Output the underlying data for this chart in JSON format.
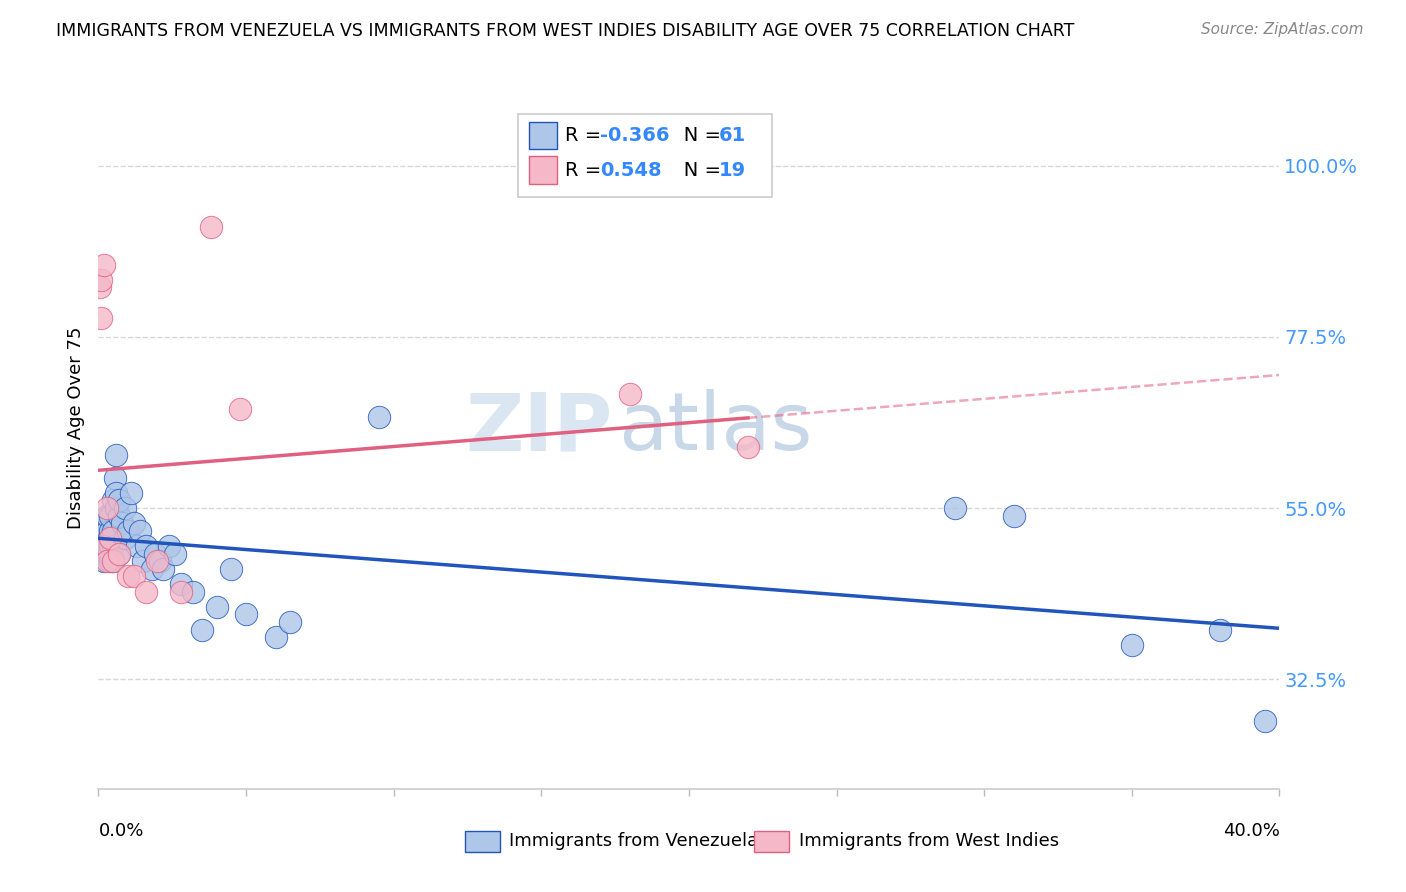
{
  "title": "IMMIGRANTS FROM VENEZUELA VS IMMIGRANTS FROM WEST INDIES DISABILITY AGE OVER 75 CORRELATION CHART",
  "source": "Source: ZipAtlas.com",
  "ylabel": "Disability Age Over 75",
  "right_yticks": [
    0.325,
    0.55,
    0.775,
    1.0
  ],
  "right_yticklabels": [
    "32.5%",
    "55.0%",
    "77.5%",
    "100.0%"
  ],
  "venezuela_color": "#aec6e8",
  "west_indies_color": "#f5b8c8",
  "trend_venezuela_color": "#2255bb",
  "trend_west_indies_color": "#e06080",
  "xmin": 0.0,
  "xmax": 0.4,
  "ymin": 0.18,
  "ymax": 1.13,
  "venezuela_x": [
    0.0008,
    0.001,
    0.001,
    0.0015,
    0.0015,
    0.002,
    0.002,
    0.002,
    0.0025,
    0.003,
    0.003,
    0.003,
    0.003,
    0.0035,
    0.0035,
    0.004,
    0.004,
    0.004,
    0.004,
    0.0045,
    0.005,
    0.005,
    0.005,
    0.005,
    0.0055,
    0.006,
    0.006,
    0.006,
    0.007,
    0.007,
    0.007,
    0.008,
    0.009,
    0.009,
    0.01,
    0.011,
    0.012,
    0.013,
    0.014,
    0.015,
    0.016,
    0.018,
    0.019,
    0.021,
    0.022,
    0.024,
    0.026,
    0.028,
    0.032,
    0.035,
    0.04,
    0.045,
    0.05,
    0.06,
    0.065,
    0.095,
    0.29,
    0.31,
    0.35,
    0.38,
    0.395
  ],
  "venezuela_y": [
    0.5,
    0.49,
    0.51,
    0.5,
    0.52,
    0.48,
    0.5,
    0.52,
    0.51,
    0.49,
    0.5,
    0.52,
    0.54,
    0.49,
    0.51,
    0.48,
    0.5,
    0.52,
    0.54,
    0.51,
    0.48,
    0.5,
    0.52,
    0.56,
    0.59,
    0.62,
    0.55,
    0.57,
    0.54,
    0.56,
    0.49,
    0.53,
    0.55,
    0.51,
    0.52,
    0.57,
    0.53,
    0.5,
    0.52,
    0.48,
    0.5,
    0.47,
    0.49,
    0.48,
    0.47,
    0.5,
    0.49,
    0.45,
    0.44,
    0.39,
    0.42,
    0.47,
    0.41,
    0.38,
    0.4,
    0.67,
    0.55,
    0.54,
    0.37,
    0.39,
    0.27
  ],
  "west_indies_x": [
    0.0005,
    0.001,
    0.001,
    0.0015,
    0.002,
    0.003,
    0.003,
    0.004,
    0.005,
    0.007,
    0.01,
    0.012,
    0.016,
    0.02,
    0.028,
    0.038,
    0.048,
    0.18,
    0.22
  ],
  "west_indies_y": [
    0.84,
    0.8,
    0.85,
    0.5,
    0.87,
    0.55,
    0.48,
    0.51,
    0.48,
    0.49,
    0.46,
    0.46,
    0.44,
    0.48,
    0.44,
    0.92,
    0.68,
    0.7,
    0.63
  ],
  "watermark_zip": "ZIP",
  "watermark_atlas": "atlas",
  "background_color": "#ffffff",
  "grid_color": "#d8d8d8"
}
